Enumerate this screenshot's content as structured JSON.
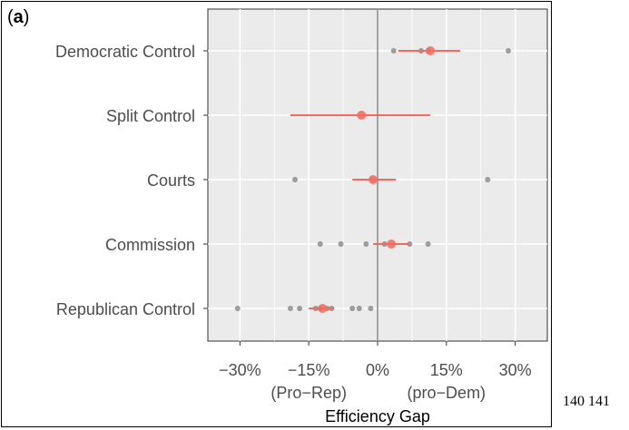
{
  "panel_label_letter": "a",
  "page_numbers": "140 141",
  "chart_data": {
    "type": "scatter",
    "xlabel": "Efficiency Gap",
    "xlim": [
      -37,
      37
    ],
    "xticks": [
      -30,
      -15,
      0,
      15,
      30
    ],
    "xtick_labels": [
      "-30%",
      "-15%",
      "0%",
      "15%",
      "30%"
    ],
    "x_annotations": [
      {
        "text": "(Pro−Rep)",
        "x": -15
      },
      {
        "text": "(pro−Dem)",
        "x": 15
      }
    ],
    "categories": [
      "Democratic Control",
      "Split Control",
      "Courts",
      "Commission",
      "Republican Control"
    ],
    "grid": true,
    "legend": "none",
    "colors": {
      "estimate": "#f26b5e",
      "points": "#555555",
      "panel": "#ebebeb",
      "grid": "#ffffff",
      "zero_line": "#888888"
    },
    "estimates": [
      {
        "category": "Democratic Control",
        "mean": 11.5,
        "low": 4.5,
        "high": 18.0
      },
      {
        "category": "Split Control",
        "mean": -3.5,
        "low": -19.0,
        "high": 11.5
      },
      {
        "category": "Courts",
        "mean": -1.0,
        "low": -5.5,
        "high": 4.0
      },
      {
        "category": "Commission",
        "mean": 3.0,
        "low": -1.0,
        "high": 7.0
      },
      {
        "category": "Republican Control",
        "mean": -12.0,
        "low": -15.0,
        "high": -9.5
      }
    ],
    "points": [
      {
        "category": "Democratic Control",
        "x": 3.5
      },
      {
        "category": "Democratic Control",
        "x": 9.5
      },
      {
        "category": "Democratic Control",
        "x": 11.0
      },
      {
        "category": "Democratic Control",
        "x": 28.5
      },
      {
        "category": "Courts",
        "x": -18.0
      },
      {
        "category": "Courts",
        "x": -1.0
      },
      {
        "category": "Courts",
        "x": 24.0
      },
      {
        "category": "Commission",
        "x": -12.5
      },
      {
        "category": "Commission",
        "x": -8.0
      },
      {
        "category": "Commission",
        "x": -2.5
      },
      {
        "category": "Commission",
        "x": 1.5
      },
      {
        "category": "Commission",
        "x": 7.0
      },
      {
        "category": "Commission",
        "x": 11.0
      },
      {
        "category": "Republican Control",
        "x": -30.5
      },
      {
        "category": "Republican Control",
        "x": -19.0
      },
      {
        "category": "Republican Control",
        "x": -17.0
      },
      {
        "category": "Republican Control",
        "x": -13.5
      },
      {
        "category": "Republican Control",
        "x": -12.5
      },
      {
        "category": "Republican Control",
        "x": -11.0
      },
      {
        "category": "Republican Control",
        "x": -10.0
      },
      {
        "category": "Republican Control",
        "x": -5.5
      },
      {
        "category": "Republican Control",
        "x": -4.0
      },
      {
        "category": "Republican Control",
        "x": -1.5
      }
    ]
  }
}
